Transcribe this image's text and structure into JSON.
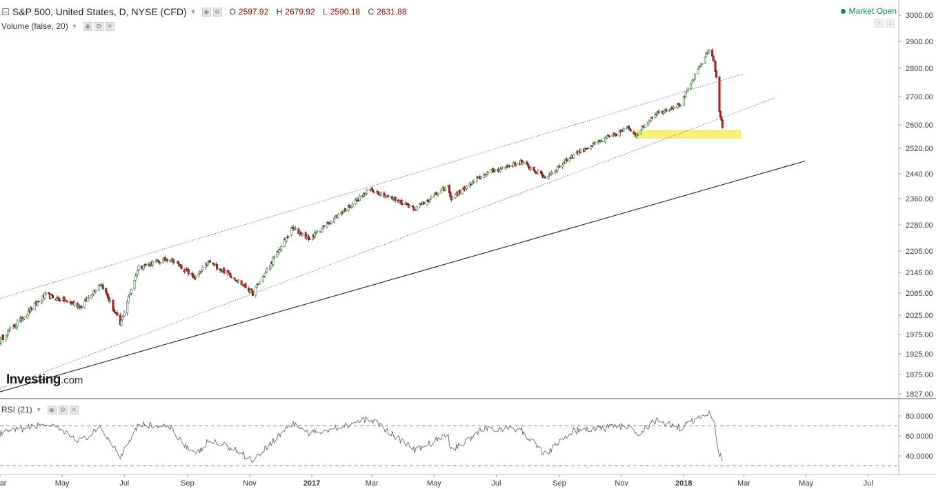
{
  "header": {
    "symbol_title": "S&P 500, United States, D, NYSE (CFD)",
    "ohlc": [
      {
        "key": "O",
        "value": "2597.92"
      },
      {
        "key": "H",
        "value": "2679.92"
      },
      {
        "key": "L",
        "value": "2590.18"
      },
      {
        "key": "C",
        "value": "2631.88"
      }
    ],
    "volume_label": "Volume (false, 20)",
    "market_status": "Market Open",
    "colors": {
      "up": "#2e9e2e",
      "down": "#c41e1e",
      "status": "#0a8a55"
    }
  },
  "rsi_label": "RSI (21)",
  "logo": {
    "main": "Investing",
    "suffix": ".com"
  },
  "chart_data": [
    {
      "type": "candlestick",
      "price_axis_ticks": [
        "3000.00",
        "2900.00",
        "2800.00",
        "2700.00",
        "2600.00",
        "2520.00",
        "2440.00",
        "2360.00",
        "2280.00",
        "2205.00",
        "2145.00",
        "2085.00",
        "2025.00",
        "1975.00",
        "1925.00",
        "1875.00",
        "1827.00"
      ],
      "x_axis_ticks": [
        {
          "label": "Mar",
          "bold": false
        },
        {
          "label": "May",
          "bold": false
        },
        {
          "label": "Jul",
          "bold": false
        },
        {
          "label": "Sep",
          "bold": false
        },
        {
          "label": "Nov",
          "bold": false
        },
        {
          "label": "2017",
          "bold": true
        },
        {
          "label": "Mar",
          "bold": false
        },
        {
          "label": "May",
          "bold": false
        },
        {
          "label": "Jul",
          "bold": false
        },
        {
          "label": "Sep",
          "bold": false
        },
        {
          "label": "Nov",
          "bold": false
        },
        {
          "label": "2018",
          "bold": true
        },
        {
          "label": "Mar",
          "bold": false
        },
        {
          "label": "May",
          "bold": false
        },
        {
          "label": "Jul",
          "bold": false
        }
      ],
      "x_domain": [
        "2016-03-01",
        "2018-07-31"
      ],
      "anchors": [
        {
          "date": "2016-03-01",
          "close": 1960
        },
        {
          "date": "2016-04-15",
          "close": 2080
        },
        {
          "date": "2016-05-20",
          "close": 2050
        },
        {
          "date": "2016-06-08",
          "close": 2115
        },
        {
          "date": "2016-06-27",
          "close": 2000
        },
        {
          "date": "2016-07-15",
          "close": 2160
        },
        {
          "date": "2016-08-15",
          "close": 2185
        },
        {
          "date": "2016-09-09",
          "close": 2128
        },
        {
          "date": "2016-09-22",
          "close": 2175
        },
        {
          "date": "2016-10-15",
          "close": 2135
        },
        {
          "date": "2016-11-04",
          "close": 2085
        },
        {
          "date": "2016-12-13",
          "close": 2270
        },
        {
          "date": "2016-12-30",
          "close": 2240
        },
        {
          "date": "2017-02-28",
          "close": 2390
        },
        {
          "date": "2017-04-13",
          "close": 2330
        },
        {
          "date": "2017-05-15",
          "close": 2400
        },
        {
          "date": "2017-05-17",
          "close": 2360
        },
        {
          "date": "2017-06-20",
          "close": 2440
        },
        {
          "date": "2017-07-25",
          "close": 2477
        },
        {
          "date": "2017-08-18",
          "close": 2428
        },
        {
          "date": "2017-09-15",
          "close": 2500
        },
        {
          "date": "2017-11-08",
          "close": 2590
        },
        {
          "date": "2017-11-15",
          "close": 2565
        },
        {
          "date": "2017-12-04",
          "close": 2640
        },
        {
          "date": "2017-12-29",
          "close": 2673
        },
        {
          "date": "2018-01-26",
          "close": 2872
        },
        {
          "date": "2018-01-31",
          "close": 2824
        },
        {
          "date": "2018-02-02",
          "close": 2762
        },
        {
          "date": "2018-02-05",
          "close": 2648
        },
        {
          "date": "2018-02-08",
          "close": 2590
        }
      ],
      "channel_lines": [
        {
          "style": "dotted",
          "from": {
            "date": "2016-03-01",
            "price": 2070
          },
          "to": {
            "date": "2018-02-28",
            "price": 2780
          }
        },
        {
          "style": "dotted",
          "from": {
            "date": "2016-03-01",
            "price": 1840
          },
          "to": {
            "date": "2018-03-31",
            "price": 2695
          }
        },
        {
          "style": "solid",
          "from": {
            "date": "2016-03-01",
            "price": 1832
          },
          "to": {
            "date": "2018-04-30",
            "price": 2480
          }
        }
      ],
      "support_zone": {
        "from_date": "2017-11-15",
        "to_date": "2018-02-26",
        "price_low": 2555,
        "price_high": 2580,
        "color": "#fff176"
      }
    },
    {
      "type": "line",
      "name": "RSI (21)",
      "y_axis_ticks": [
        "80.0000",
        "60.0000",
        "40.0000"
      ],
      "ylim": [
        25,
        90
      ],
      "reference_levels": [
        70,
        30
      ],
      "anchors": [
        {
          "date": "2016-03-01",
          "value": 62
        },
        {
          "date": "2016-04-15",
          "value": 72
        },
        {
          "date": "2016-05-20",
          "value": 55
        },
        {
          "date": "2016-06-08",
          "value": 68
        },
        {
          "date": "2016-06-27",
          "value": 40
        },
        {
          "date": "2016-07-15",
          "value": 72
        },
        {
          "date": "2016-08-15",
          "value": 68
        },
        {
          "date": "2016-09-09",
          "value": 40
        },
        {
          "date": "2016-09-22",
          "value": 55
        },
        {
          "date": "2016-10-15",
          "value": 48
        },
        {
          "date": "2016-11-04",
          "value": 36
        },
        {
          "date": "2016-12-13",
          "value": 73
        },
        {
          "date": "2016-12-30",
          "value": 62
        },
        {
          "date": "2017-02-28",
          "value": 77
        },
        {
          "date": "2017-04-13",
          "value": 45
        },
        {
          "date": "2017-05-15",
          "value": 62
        },
        {
          "date": "2017-05-17",
          "value": 45
        },
        {
          "date": "2017-06-20",
          "value": 68
        },
        {
          "date": "2017-07-25",
          "value": 66
        },
        {
          "date": "2017-08-18",
          "value": 42
        },
        {
          "date": "2017-09-15",
          "value": 65
        },
        {
          "date": "2017-11-08",
          "value": 70
        },
        {
          "date": "2017-11-15",
          "value": 60
        },
        {
          "date": "2017-12-04",
          "value": 75
        },
        {
          "date": "2017-12-29",
          "value": 68
        },
        {
          "date": "2018-01-26",
          "value": 84
        },
        {
          "date": "2018-01-31",
          "value": 72
        },
        {
          "date": "2018-02-02",
          "value": 58
        },
        {
          "date": "2018-02-05",
          "value": 42
        },
        {
          "date": "2018-02-08",
          "value": 35
        }
      ]
    }
  ]
}
